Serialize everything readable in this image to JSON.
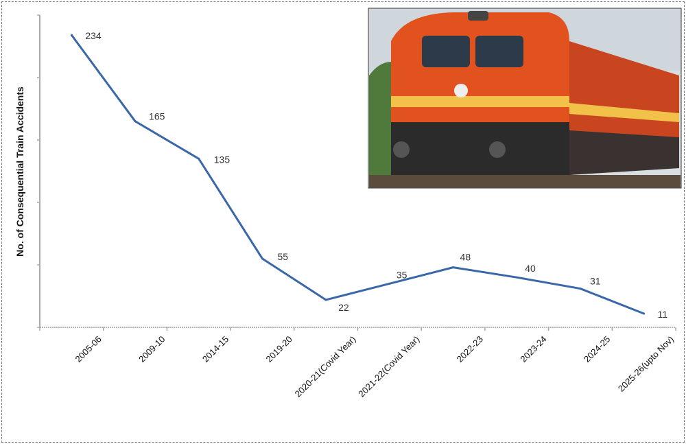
{
  "chart_data": {
    "type": "line",
    "title": "",
    "xlabel": "",
    "ylabel": "No. of Consequential Train Accidents",
    "ylim": [
      0,
      250
    ],
    "y_ticks_labeled": false,
    "grid": false,
    "categories": [
      "2005-06",
      "2009-10",
      "2014-15",
      "2019-20",
      "2020-21(Covid Year)",
      "2021-22(Covid Year)",
      "2022-23",
      "2023-24",
      "2024-25",
      "2025-26(upto Nov)"
    ],
    "series": [
      {
        "values": [
          234,
          165,
          135,
          55,
          22,
          35,
          48,
          40,
          31,
          11
        ],
        "color": "#3a67a8"
      }
    ],
    "data_labels": [
      "234",
      "165",
      "135",
      "55",
      "22",
      "35",
      "48",
      "40",
      "31",
      "11"
    ]
  },
  "image": {
    "subject": "electric locomotive photo",
    "colors": {
      "body": "#e2521f",
      "stripe": "#f2c14a",
      "sky": "#d8dde0"
    }
  }
}
